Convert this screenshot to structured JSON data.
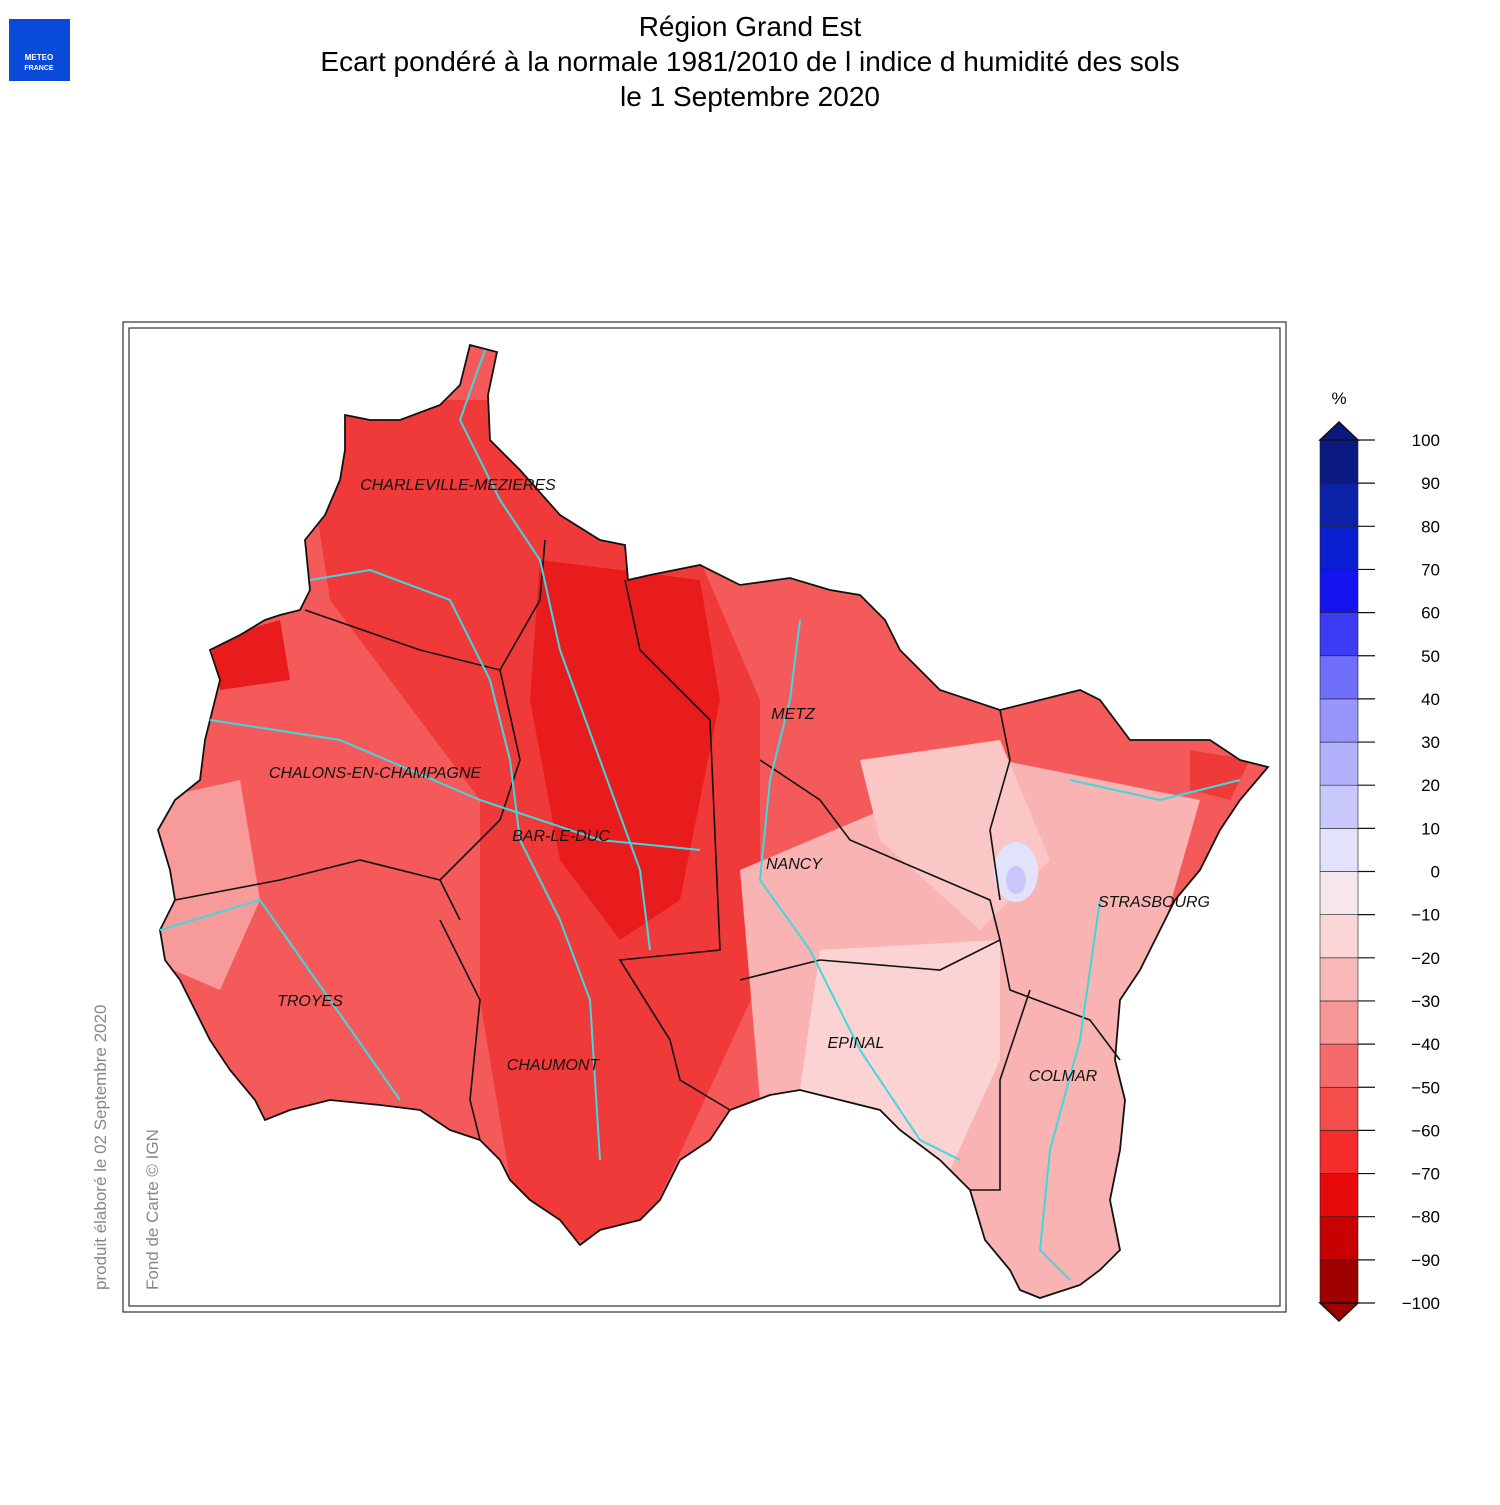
{
  "logo": {
    "line1": "METEO",
    "line2": "FRANCE"
  },
  "header": {
    "title": "Région Grand Est",
    "subtitle": "Ecart pondéré à la normale 1981/2010 de l indice d humidité des sols",
    "date": "le 1 Septembre 2020"
  },
  "cities": [
    "CHARLEVILLE-MEZIERES",
    "METZ",
    "CHALONS-EN-CHAMPAGNE",
    "BAR-LE-DUC",
    "NANCY",
    "STRASBOURG",
    "TROYES",
    "EPINAL",
    "CHAUMONT",
    "COLMAR"
  ],
  "credits": {
    "produced": "produit élaboré le 02 Septembre 2020",
    "basemap": "Fond de Carte © IGN"
  },
  "colorbar": {
    "unit": "%",
    "ticks": [
      {
        "value": -100,
        "label": "−100"
      },
      {
        "value": -90,
        "label": "−90"
      },
      {
        "value": -80,
        "label": "−80"
      },
      {
        "value": -70,
        "label": "−70"
      },
      {
        "value": -60,
        "label": "−60"
      },
      {
        "value": -50,
        "label": "−50"
      },
      {
        "value": -40,
        "label": "−40"
      },
      {
        "value": -30,
        "label": "−30"
      },
      {
        "value": -20,
        "label": "−20"
      },
      {
        "value": -10,
        "label": "−10"
      },
      0,
      10,
      20,
      30,
      40,
      50,
      60,
      70,
      80,
      90,
      100
    ],
    "colors": [
      "#9e0000",
      "#c80000",
      "#e60a0a",
      "#f42c2c",
      "#f54c4c",
      "#f56a6a",
      "#f79696",
      "#f9b8b8",
      "#fbd6d6",
      "#f6e6ee",
      "#e2e2fb",
      "#c8c8fb",
      "#b0b0fb",
      "#9696fb",
      "#6e6efb",
      "#3c3cf5",
      "#1414f0",
      "#0a1ed2",
      "#0a22a8",
      "#0a1a80"
    ]
  }
}
